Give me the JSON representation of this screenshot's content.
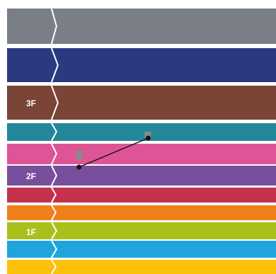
{
  "floors": {
    "labels": {
      "third": "3F",
      "second": "2F",
      "first": "1F"
    }
  },
  "bands": [
    {
      "name": "band-gray",
      "color": "#7a7e86",
      "label": ""
    },
    {
      "name": "band-navy",
      "color": "#2b3a80",
      "label": ""
    },
    {
      "name": "band-brown",
      "color": "#7a4436",
      "label": "3F"
    },
    {
      "name": "band-teal",
      "color": "#25879a",
      "label": ""
    },
    {
      "name": "band-pink",
      "color": "#dd5597",
      "label": ""
    },
    {
      "name": "band-purple",
      "color": "#784f9c",
      "label": "2F"
    },
    {
      "name": "band-crimson",
      "color": "#c4304e",
      "label": ""
    },
    {
      "name": "band-orange",
      "color": "#ee8119",
      "label": ""
    },
    {
      "name": "band-lime",
      "color": "#a9bf1a",
      "label": "1F"
    },
    {
      "name": "band-sky",
      "color": "#1fa5db",
      "label": ""
    },
    {
      "name": "band-yellow",
      "color": "#fbc10b",
      "label": ""
    }
  ],
  "marker_color": "#8a8a8a",
  "line_color": "#111111"
}
